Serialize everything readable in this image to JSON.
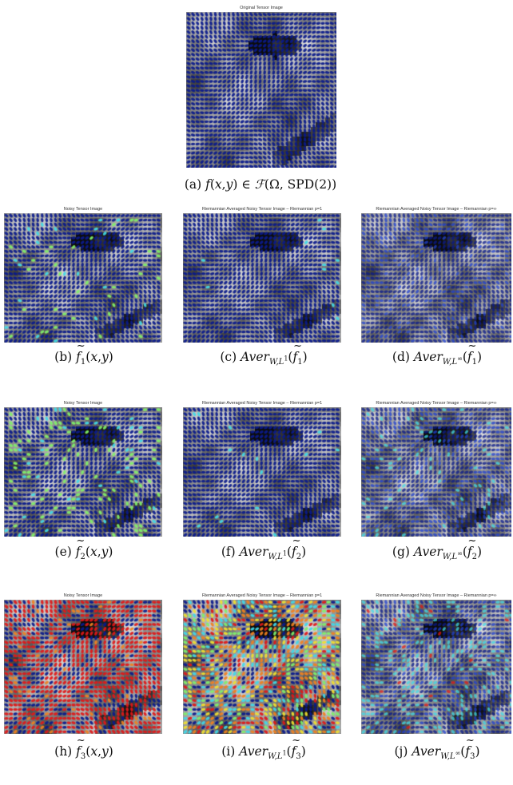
{
  "panels": [
    {
      "id": "a",
      "title": "Original Tensor Image",
      "caption": "(a) f(x,y) ∈ ℱ(Ω, SPD(2))",
      "mode": "clean",
      "seed": 1
    },
    {
      "id": "b",
      "title": "Noisy Tensor Image",
      "caption": "(b) f̃1(x,y)",
      "mode": "noise1",
      "seed": 2
    },
    {
      "id": "c",
      "title": "Riemannian Averaged Noisy Tensor Image – Riemannian p=1",
      "caption": "(c) AverW,L1(f̃1)",
      "mode": "avg1",
      "seed": 3
    },
    {
      "id": "d",
      "title": "Riemannian Averaged Noisy Tensor Image – Riemannian p=∞",
      "caption": "(d) AverW,L∞(f̃1)",
      "mode": "avgInf1",
      "seed": 4
    },
    {
      "id": "e",
      "title": "Noisy Tensor Image",
      "caption": "(e) f̃2(x,y)",
      "mode": "noise2",
      "seed": 5
    },
    {
      "id": "f",
      "title": "Riemannian Averaged Noisy Tensor Image – Riemannian p=1",
      "caption": "(f) AverW,L1(f̃2)",
      "mode": "avg2",
      "seed": 6
    },
    {
      "id": "g",
      "title": "Riemannian Averaged Noisy Tensor Image – Riemannian p=∞",
      "caption": "(g) AverW,L∞(f̃2)",
      "mode": "avgInf2",
      "seed": 7
    },
    {
      "id": "h",
      "title": "Noisy Tensor Image",
      "caption": "(h) f̃3(x,y)",
      "mode": "noise3",
      "seed": 8
    },
    {
      "id": "i",
      "title": "Riemannian Averaged Noisy Tensor Image – Riemannian p=1",
      "caption": "(i) AverW,L1(f̃3)",
      "mode": "avg3",
      "seed": 9
    },
    {
      "id": "j",
      "title": "Riemannian Averaged Noisy Tensor Image – Riemannian p=∞",
      "caption": "(j) AverW,L∞(f̃3)",
      "mode": "avgInf3",
      "seed": 10
    }
  ],
  "colors": {
    "dark_blue": "#0a1a8c",
    "blue": "#1f3fd0",
    "cyan": "#3fd8e8",
    "green": "#7ff06a",
    "yellow": "#f0e030",
    "orange": "#f08020",
    "red": "#e01818"
  }
}
